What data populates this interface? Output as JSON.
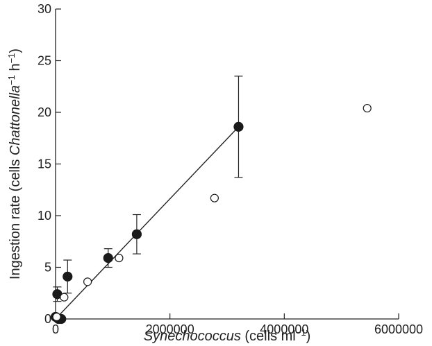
{
  "chart_data": {
    "type": "scatter",
    "xlabel": {
      "italic": "Synechococcus",
      "rest": " (cells ml",
      "sup": "−1",
      "end": ")"
    },
    "ylabel": {
      "before": "Ingestion rate (cells ",
      "italic": "Chattonella",
      "sup1": "−1",
      "mid": " h",
      "sup2": "−1",
      "end": ")"
    },
    "xlim": [
      0,
      6000000
    ],
    "ylim": [
      0,
      30
    ],
    "x_ticks": [
      0,
      2000000,
      4000000,
      6000000
    ],
    "x_tick_labels": [
      "0",
      "2000000",
      "4000000",
      "6000000"
    ],
    "y_ticks": [
      0,
      5,
      10,
      15,
      20,
      25,
      30
    ],
    "y_tick_labels": [
      "0",
      "5",
      "10",
      "15",
      "20",
      "25",
      "30"
    ],
    "grid": false,
    "series": [
      {
        "marker": "filled-circle",
        "color": "#1a1a1a",
        "points": [
          {
            "x": 0,
            "y": 0.2
          },
          {
            "x": 50000,
            "y": 0.0
          },
          {
            "x": 100000,
            "y": 0.0
          },
          {
            "x": 30000,
            "y": 2.4,
            "err": 0.7
          },
          {
            "x": 210000,
            "y": 4.1,
            "err": 1.6
          },
          {
            "x": 920000,
            "y": 5.9,
            "err": 0.9
          },
          {
            "x": 1420000,
            "y": 8.2,
            "err": 1.9
          },
          {
            "x": 3200000,
            "y": 18.6,
            "err": 4.9
          }
        ]
      },
      {
        "marker": "open-circle",
        "color": "#1a1a1a",
        "points": [
          {
            "x": 20000,
            "y": 0.2
          },
          {
            "x": 150000,
            "y": 2.1
          },
          {
            "x": 560000,
            "y": 3.6
          },
          {
            "x": 1110000,
            "y": 5.9
          },
          {
            "x": 2780000,
            "y": 11.7
          },
          {
            "x": 5450000,
            "y": 20.4
          }
        ]
      }
    ],
    "fit_line": {
      "from": [
        0,
        0.0
      ],
      "to": [
        3200000,
        18.6
      ]
    }
  }
}
